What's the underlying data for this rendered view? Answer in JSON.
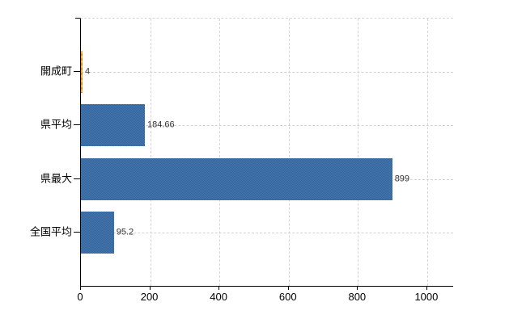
{
  "chart_data": {
    "type": "bar",
    "orientation": "horizontal",
    "title": "",
    "xlabel": "",
    "ylabel": "",
    "categories": [
      "開成町",
      "県平均",
      "県最大",
      "全国平均"
    ],
    "values": [
      4,
      184.66,
      899,
      95.2
    ],
    "value_labels": [
      "4",
      "184.66",
      "899",
      "95.2"
    ],
    "series": [
      {
        "name": "value",
        "values": [
          4,
          184.66,
          899,
          95.2
        ]
      }
    ],
    "x_ticks": [
      0,
      200,
      400,
      600,
      800,
      1000
    ],
    "x_tick_labels": [
      "0",
      "200",
      "400",
      "600",
      "800",
      "1000"
    ],
    "xlim": [
      0,
      1075
    ],
    "grid": true,
    "legend": false,
    "bar_color": "#3d6ca3",
    "highlight_bar_index": 0,
    "highlight_bar_color": "#eda02f",
    "axis_color": "#000000",
    "hgrid_color": "#ccd4cb",
    "vgrid_color": "#d6d3db",
    "value_label_color": "#333333",
    "background_color": "#ffffff"
  }
}
